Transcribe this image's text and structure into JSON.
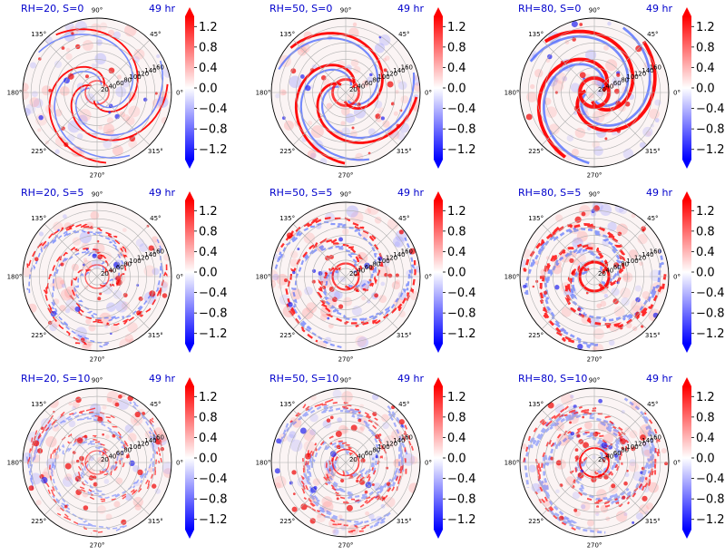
{
  "chart_data": {
    "type": "heatmap",
    "layout": "3x3 polar panels",
    "colormap": "bwr",
    "color_range": [
      -1.4,
      1.4
    ],
    "colorbar_ticks": [
      "1.2",
      "0.8",
      "0.4",
      "0.0",
      "−0.4",
      "−0.8",
      "−1.2"
    ],
    "colorbar_tick_values": [
      1.2,
      0.8,
      0.4,
      0.0,
      -0.4,
      -0.8,
      -1.2
    ],
    "angle_labels": [
      "0°",
      "45°",
      "90°",
      "135°",
      "180°",
      "225°",
      "270°",
      "315°"
    ],
    "angle_values": [
      0,
      45,
      90,
      135,
      180,
      225,
      270,
      315
    ],
    "radial_labels": [
      "20",
      "40",
      "60",
      "80",
      "100",
      "120",
      "140",
      "160"
    ],
    "radial_values": [
      20,
      40,
      60,
      80,
      100,
      120,
      140,
      160
    ],
    "r_max": 180,
    "grid": true,
    "panels": [
      {
        "title": "RH=20, S=0",
        "time": "49 hr",
        "rh": 20,
        "shear": 0
      },
      {
        "title": "RH=50, S=0",
        "time": "49 hr",
        "rh": 50,
        "shear": 0
      },
      {
        "title": "RH=80, S=0",
        "time": "49 hr",
        "rh": 80,
        "shear": 0
      },
      {
        "title": "RH=20, S=5",
        "time": "49 hr",
        "rh": 20,
        "shear": 5
      },
      {
        "title": "RH=50, S=5",
        "time": "49 hr",
        "rh": 50,
        "shear": 5
      },
      {
        "title": "RH=80, S=5",
        "time": "49 hr",
        "rh": 80,
        "shear": 5
      },
      {
        "title": "RH=20, S=10",
        "time": "49 hr",
        "rh": 20,
        "shear": 10
      },
      {
        "title": "RH=50, S=10",
        "time": "49 hr",
        "rh": 50,
        "shear": 10
      },
      {
        "title": "RH=80, S=10",
        "time": "49 hr",
        "rh": 80,
        "shear": 10
      }
    ]
  }
}
